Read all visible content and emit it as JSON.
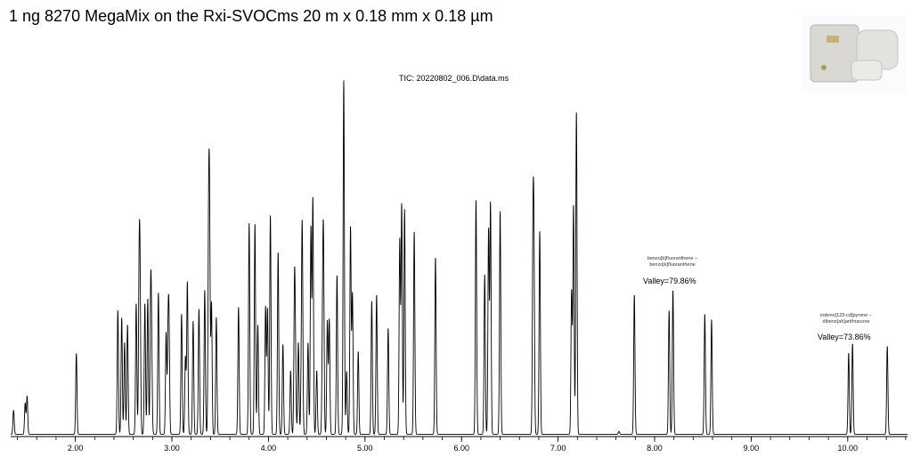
{
  "title": "1 ng 8270 MegaMix on the Rxi-SVOCms 20 m x 0.18 mm x 0.18 µm",
  "thumbnail": {
    "icon": "product-photo-icon"
  },
  "chart_data": {
    "type": "line",
    "title": "TIC: 20220802_006.D\\data.ms",
    "xlabel": "",
    "ylabel": "",
    "xlim": [
      1.33,
      10.62
    ],
    "ylim": [
      0,
      100
    ],
    "x_ticks": [
      "2.00",
      "3.00",
      "4.00",
      "5.00",
      "6.00",
      "7.00",
      "8.00",
      "9.00",
      "10.00"
    ],
    "x_tick_values": [
      2,
      3,
      4,
      5,
      6,
      7,
      8,
      9,
      10
    ],
    "minor_tick_step": 0.2,
    "grid": false,
    "line_color": "#000000",
    "peaks_retention_time_min": [
      1.36,
      1.48,
      1.5,
      2.01,
      2.44,
      2.48,
      2.51,
      2.54,
      2.63,
      2.66,
      2.67,
      2.72,
      2.75,
      2.78,
      2.79,
      2.86,
      2.94,
      2.96,
      2.97,
      3.1,
      3.14,
      3.16,
      3.22,
      3.28,
      3.34,
      3.38,
      3.39,
      3.41,
      3.46,
      3.69,
      3.8,
      3.86,
      3.89,
      3.97,
      3.99,
      4.02,
      4.1,
      4.15,
      4.23,
      4.27,
      4.28,
      4.31,
      4.34,
      4.35,
      4.41,
      4.44,
      4.46,
      4.5,
      4.56,
      4.57,
      4.61,
      4.63,
      4.71,
      4.78,
      4.81,
      4.85,
      4.87,
      4.93,
      5.07,
      5.12,
      5.24,
      5.36,
      5.38,
      5.41,
      5.51,
      5.73,
      6.15,
      6.24,
      6.28,
      6.3,
      6.4,
      6.74,
      6.75,
      6.81,
      7.14,
      7.16,
      7.19,
      7.63,
      7.79,
      8.15,
      8.19,
      8.52,
      8.59,
      10.01,
      10.05,
      10.41
    ],
    "peaks_relative_abundance": [
      6.8,
      8.8,
      10.8,
      22.9,
      35,
      33,
      26,
      31,
      37,
      41,
      40.7,
      37,
      38.4,
      38,
      22,
      40,
      28.6,
      25.6,
      27.6,
      34,
      21.8,
      43,
      32,
      35.4,
      40.7,
      53,
      55.5,
      37,
      33,
      36,
      59.8,
      59.5,
      31,
      36,
      35.4,
      62,
      51.5,
      25.4,
      18,
      40.7,
      18.3,
      26,
      13.8,
      56,
      25.9,
      58.5,
      66.8,
      18,
      26,
      51,
      32,
      32.4,
      45,
      100,
      17.8,
      58.5,
      39.7,
      23.4,
      37.7,
      39.4,
      30,
      55,
      64.8,
      63.6,
      57.3,
      50,
      66.3,
      45.2,
      57.8,
      65.3,
      63,
      52,
      45.7,
      57.5,
      40.5,
      64.6,
      91.2,
      0.8,
      39.4,
      35,
      40.7,
      34,
      32.4,
      23,
      25.6,
      24.9
    ],
    "annotations": [
      {
        "line1": "benzo[b]fluoranthene  –",
        "line2": "benzo[k]fluoranthene",
        "valley": "Valley=79.86%",
        "rt": 8.17
      },
      {
        "line1": "indeno[123-cd]pyrene  –",
        "line2": "dibenz[ah]anthracene",
        "valley": "Valley=73.86%",
        "rt": 10.03
      }
    ]
  }
}
